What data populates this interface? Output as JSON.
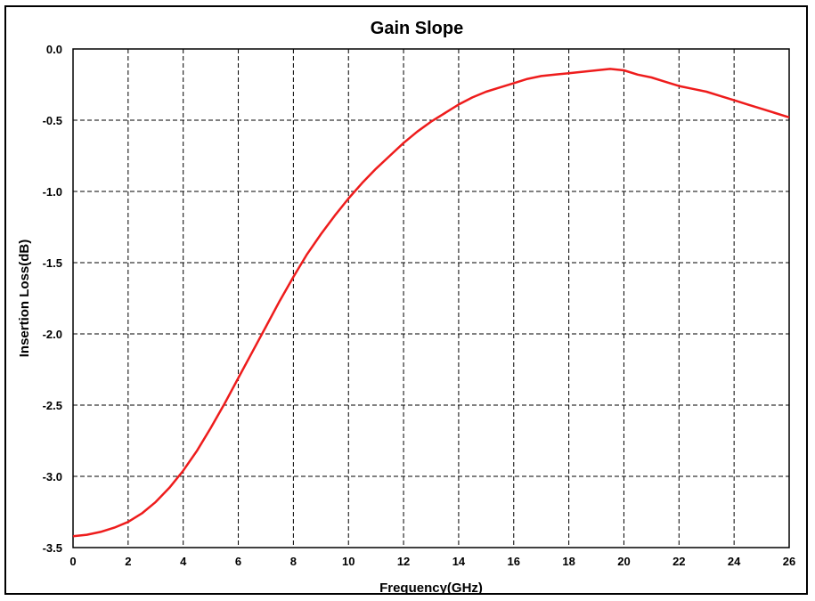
{
  "chart_data": {
    "type": "line",
    "title": "Gain Slope",
    "xlabel": "Frequency(GHz)",
    "ylabel": "Insertion Loss(dB)",
    "xlim": [
      0,
      26
    ],
    "ylim": [
      -3.5,
      0.0
    ],
    "x_ticks": [
      "0",
      "2",
      "4",
      "6",
      "8",
      "10",
      "12",
      "14",
      "16",
      "18",
      "20",
      "22",
      "24",
      "26"
    ],
    "y_ticks": [
      "0.0",
      "-0.5",
      "-1.0",
      "-1.5",
      "-2.0",
      "-2.5",
      "-3.0",
      "-3.5"
    ],
    "grid": true,
    "line_color": "#ee1c1c",
    "series": [
      {
        "x": [
          0,
          0.5,
          1,
          1.5,
          2,
          2.5,
          3,
          3.5,
          4,
          4.5,
          5,
          5.5,
          6,
          6.5,
          7,
          7.5,
          8,
          8.5,
          9,
          9.5,
          10,
          10.5,
          11,
          11.5,
          12,
          12.5,
          13,
          13.5,
          14,
          14.5,
          15,
          15.5,
          16,
          16.5,
          17,
          17.5,
          18,
          18.5,
          19,
          19.5,
          20,
          20.5,
          21,
          21.5,
          22,
          22.5,
          23,
          23.5,
          24,
          24.5,
          25,
          25.5,
          26
        ],
        "values": [
          -3.42,
          -3.41,
          -3.39,
          -3.36,
          -3.32,
          -3.26,
          -3.18,
          -3.08,
          -2.96,
          -2.82,
          -2.66,
          -2.49,
          -2.31,
          -2.13,
          -1.95,
          -1.77,
          -1.6,
          -1.44,
          -1.3,
          -1.17,
          -1.05,
          -0.94,
          -0.84,
          -0.75,
          -0.66,
          -0.58,
          -0.51,
          -0.45,
          -0.39,
          -0.34,
          -0.3,
          -0.27,
          -0.24,
          -0.21,
          -0.19,
          -0.18,
          -0.17,
          -0.16,
          -0.15,
          -0.14,
          -0.15,
          -0.18,
          -0.2,
          -0.23,
          -0.26,
          -0.28,
          -0.3,
          -0.33,
          -0.36,
          -0.39,
          -0.42,
          -0.45,
          -0.48
        ]
      }
    ]
  }
}
